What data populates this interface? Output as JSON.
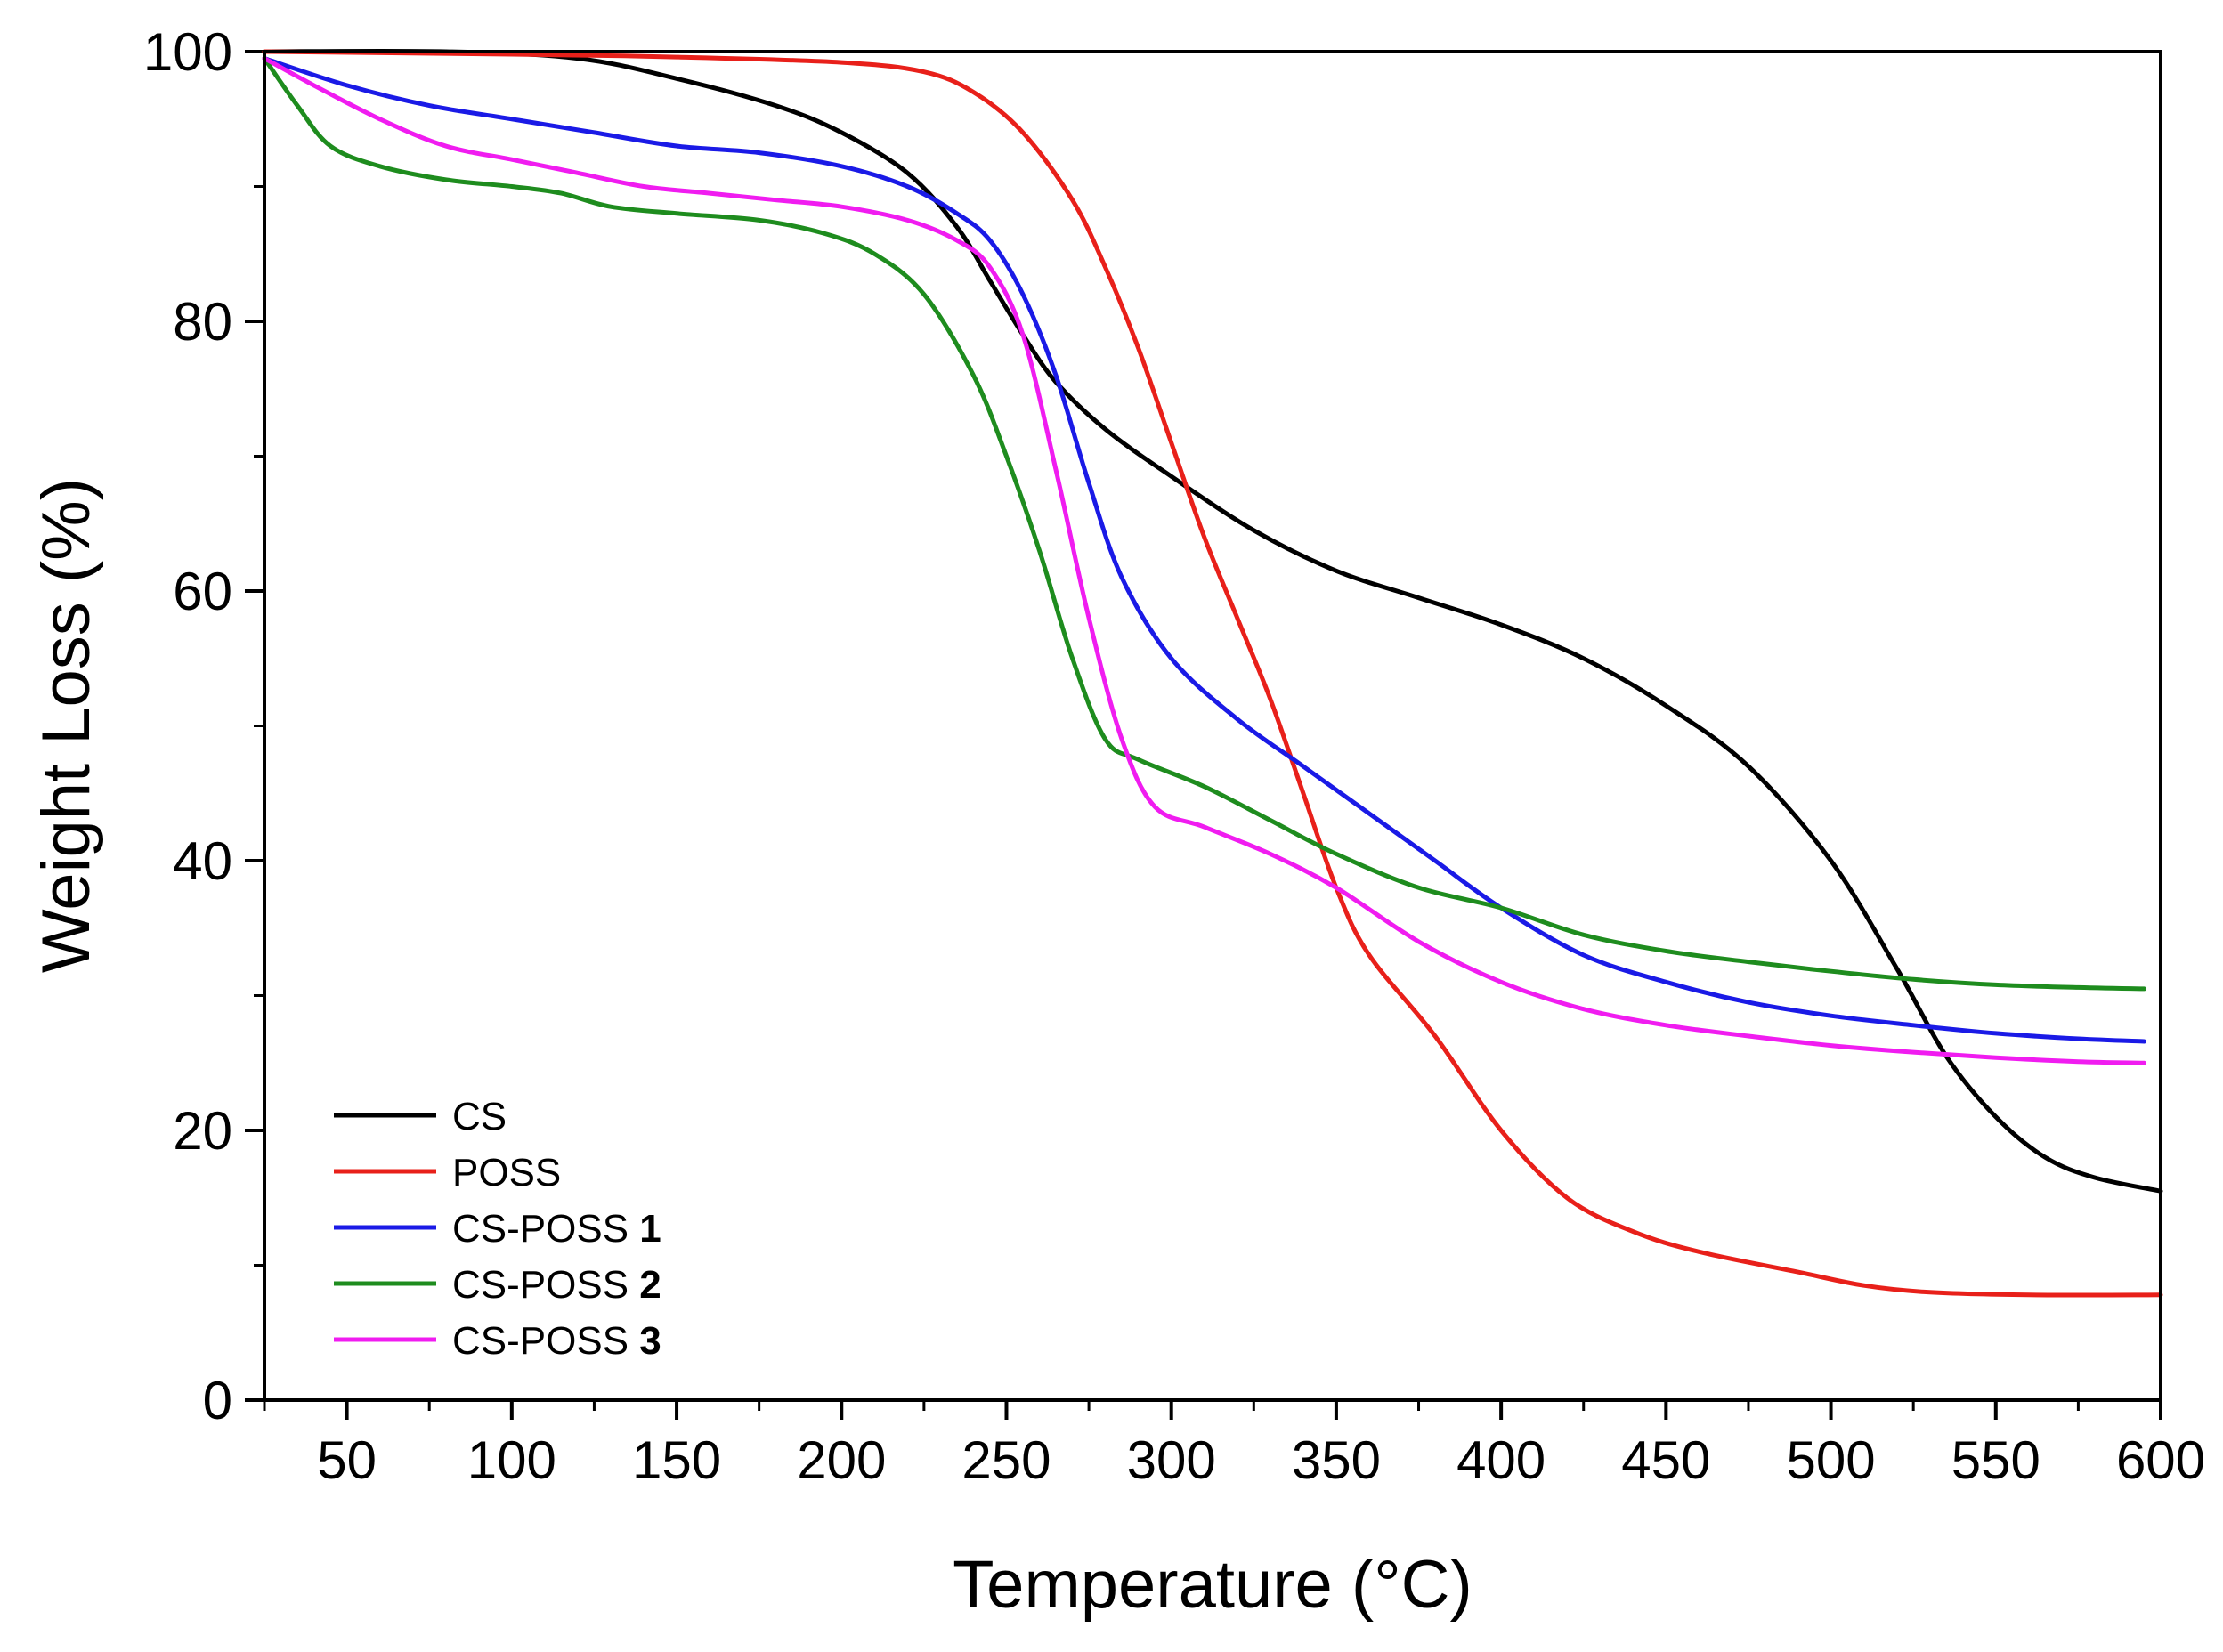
{
  "chart_data": {
    "type": "line",
    "title": "",
    "xlabel": "Temperature (°C)",
    "ylabel": "Weight Loss (%)",
    "xlim": [
      25,
      600
    ],
    "ylim": [
      0,
      100
    ],
    "x_ticks": [
      50,
      100,
      150,
      200,
      250,
      300,
      350,
      400,
      450,
      500,
      550,
      600
    ],
    "y_ticks": [
      0,
      20,
      40,
      60,
      80,
      100
    ],
    "x_tick_labels": [
      "50",
      "100",
      "150",
      "200",
      "250",
      "300",
      "350",
      "400",
      "450",
      "500",
      "550",
      "600"
    ],
    "y_tick_labels": [
      "0",
      "20",
      "40",
      "60",
      "80",
      "100"
    ],
    "grid": false,
    "legend_position": "bottom-left",
    "series": [
      {
        "name": "CS",
        "label_main": "CS",
        "label_bold": "",
        "color": "#000000",
        "points": [
          [
            25,
            100
          ],
          [
            80,
            100
          ],
          [
            120,
            99.5
          ],
          [
            150,
            98
          ],
          [
            180,
            96
          ],
          [
            200,
            94
          ],
          [
            220,
            91
          ],
          [
            235,
            87
          ],
          [
            245,
            83
          ],
          [
            255,
            79
          ],
          [
            265,
            75.5
          ],
          [
            280,
            72
          ],
          [
            300,
            68.5
          ],
          [
            325,
            64.5
          ],
          [
            350,
            61.5
          ],
          [
            375,
            59.5
          ],
          [
            400,
            57.5
          ],
          [
            425,
            55
          ],
          [
            450,
            51.5
          ],
          [
            475,
            47
          ],
          [
            500,
            40
          ],
          [
            520,
            32
          ],
          [
            535,
            25.5
          ],
          [
            550,
            21
          ],
          [
            565,
            18
          ],
          [
            580,
            16.5
          ],
          [
            600,
            15.5
          ]
        ]
      },
      {
        "name": "POSS",
        "label_main": "POSS",
        "label_bold": "",
        "color": "#e8201a",
        "points": [
          [
            25,
            100
          ],
          [
            100,
            99.8
          ],
          [
            150,
            99.6
          ],
          [
            200,
            99.2
          ],
          [
            225,
            98.5
          ],
          [
            240,
            97
          ],
          [
            255,
            94
          ],
          [
            270,
            89
          ],
          [
            280,
            84
          ],
          [
            290,
            78
          ],
          [
            300,
            71
          ],
          [
            310,
            64
          ],
          [
            320,
            58
          ],
          [
            330,
            52
          ],
          [
            340,
            45
          ],
          [
            350,
            38
          ],
          [
            360,
            33
          ],
          [
            380,
            27
          ],
          [
            400,
            20
          ],
          [
            420,
            15
          ],
          [
            440,
            12.5
          ],
          [
            460,
            11
          ],
          [
            490,
            9.5
          ],
          [
            510,
            8.5
          ],
          [
            530,
            8
          ],
          [
            560,
            7.8
          ],
          [
            600,
            7.8
          ]
        ]
      },
      {
        "name": "CS-POSS 1",
        "label_main": "CS-POSS ",
        "label_bold": "1",
        "color": "#1a1ae6",
        "points": [
          [
            25,
            99.5
          ],
          [
            50,
            97.5
          ],
          [
            75,
            96
          ],
          [
            100,
            95
          ],
          [
            125,
            94
          ],
          [
            150,
            93
          ],
          [
            175,
            92.5
          ],
          [
            200,
            91.5
          ],
          [
            220,
            90
          ],
          [
            235,
            88
          ],
          [
            245,
            86
          ],
          [
            255,
            82
          ],
          [
            265,
            76
          ],
          [
            275,
            68
          ],
          [
            285,
            61
          ],
          [
            300,
            55
          ],
          [
            320,
            50.5
          ],
          [
            340,
            47
          ],
          [
            360,
            43.5
          ],
          [
            380,
            40
          ],
          [
            400,
            36.5
          ],
          [
            425,
            33
          ],
          [
            450,
            31
          ],
          [
            475,
            29.5
          ],
          [
            500,
            28.5
          ],
          [
            525,
            27.8
          ],
          [
            550,
            27.2
          ],
          [
            575,
            26.8
          ],
          [
            595,
            26.6
          ]
        ]
      },
      {
        "name": "CS-POSS 2",
        "label_main": "CS-POSS ",
        "label_bold": "2",
        "color": "#1e8c1e",
        "points": [
          [
            25,
            99.5
          ],
          [
            35,
            96
          ],
          [
            45,
            93
          ],
          [
            60,
            91.5
          ],
          [
            80,
            90.5
          ],
          [
            100,
            90
          ],
          [
            115,
            89.5
          ],
          [
            130,
            88.5
          ],
          [
            150,
            88
          ],
          [
            175,
            87.5
          ],
          [
            195,
            86.5
          ],
          [
            210,
            85
          ],
          [
            225,
            82
          ],
          [
            240,
            76
          ],
          [
            250,
            70
          ],
          [
            260,
            63
          ],
          [
            270,
            55
          ],
          [
            280,
            49
          ],
          [
            290,
            47.5
          ],
          [
            310,
            45.5
          ],
          [
            330,
            43
          ],
          [
            350,
            40.5
          ],
          [
            375,
            38
          ],
          [
            400,
            36.5
          ],
          [
            425,
            34.5
          ],
          [
            450,
            33.3
          ],
          [
            475,
            32.5
          ],
          [
            500,
            31.8
          ],
          [
            525,
            31.2
          ],
          [
            550,
            30.8
          ],
          [
            575,
            30.6
          ],
          [
            595,
            30.5
          ]
        ]
      },
      {
        "name": "CS-POSS 3",
        "label_main": "CS-POSS ",
        "label_bold": "3",
        "color": "#f01cf0",
        "points": [
          [
            25,
            99.5
          ],
          [
            40,
            97.5
          ],
          [
            60,
            95
          ],
          [
            80,
            93
          ],
          [
            100,
            92
          ],
          [
            120,
            91
          ],
          [
            140,
            90
          ],
          [
            160,
            89.5
          ],
          [
            180,
            89
          ],
          [
            200,
            88.5
          ],
          [
            220,
            87.5
          ],
          [
            235,
            86
          ],
          [
            245,
            84
          ],
          [
            255,
            79
          ],
          [
            265,
            69
          ],
          [
            275,
            58
          ],
          [
            285,
            49
          ],
          [
            295,
            44
          ],
          [
            310,
            42.5
          ],
          [
            330,
            40.5
          ],
          [
            350,
            38
          ],
          [
            375,
            34
          ],
          [
            400,
            31
          ],
          [
            425,
            29
          ],
          [
            450,
            27.8
          ],
          [
            475,
            27
          ],
          [
            500,
            26.3
          ],
          [
            525,
            25.8
          ],
          [
            550,
            25.4
          ],
          [
            575,
            25.1
          ],
          [
            595,
            25
          ]
        ]
      }
    ]
  }
}
